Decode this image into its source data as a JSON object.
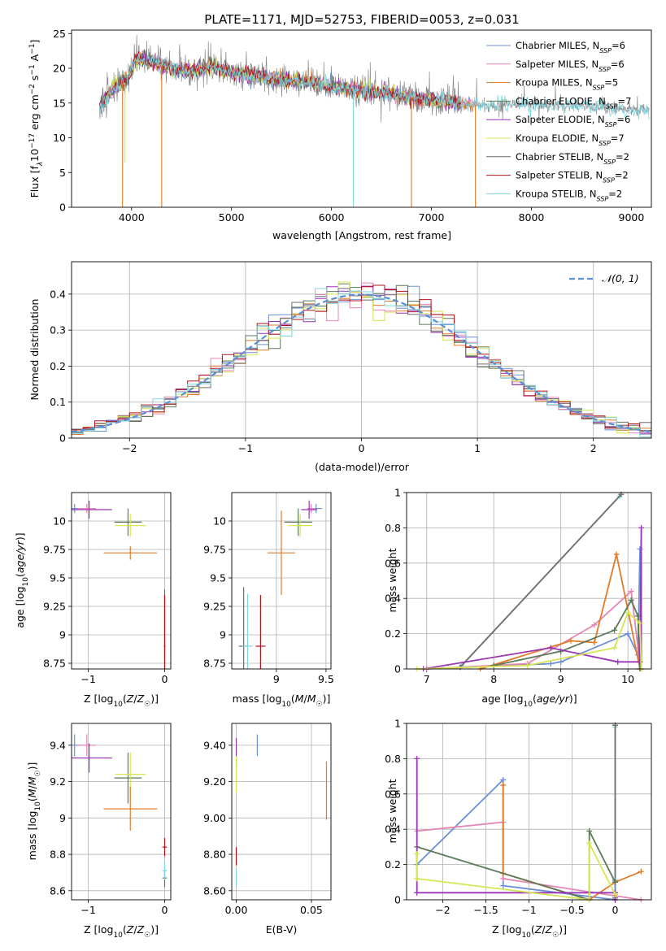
{
  "colors": {
    "chab_miles": "#6a8fd6",
    "salp_miles": "#e585b5",
    "krou_miles": "#e07b2a",
    "chab_elodie": "#5a7a58",
    "salp_elodie": "#9b35b5",
    "krou_elodie": "#d4e652",
    "chab_stelib": "#6e6e6e",
    "salp_stelib": "#b5101a",
    "krou_stelib": "#7fd6e0",
    "gauss": "#5b8fd8",
    "grid": "#b0b0b0"
  },
  "chart_data": [
    {
      "id": "spectrum",
      "type": "line",
      "title": "PLATE=1171, MJD=52753, FIBERID=0053, z=0.031",
      "xlabel": "wavelength [Angstrom, rest frame]",
      "ylabel": "Flux [f_λ10^-17 erg cm^-2 s^-1 A^-1]",
      "xlim": [
        3400,
        9200
      ],
      "ylim": [
        0,
        25.5
      ],
      "xticks": [
        4000,
        5000,
        6000,
        7000,
        8000,
        9000
      ],
      "yticks": [
        0,
        5,
        10,
        15,
        20,
        25
      ],
      "grid": false,
      "legend": "top-right",
      "legend_entries": [
        {
          "base": "Chabrier MILES, N",
          "sub": "SSP",
          "tail": "=6",
          "color": "chab_miles"
        },
        {
          "base": "Salpeter MILES, N",
          "sub": "SSP",
          "tail": "=6",
          "color": "salp_miles"
        },
        {
          "base": "Kroupa MILES, N",
          "sub": "SSP",
          "tail": "=5",
          "color": "krou_miles"
        },
        {
          "base": "Chabrier ELODIE, N",
          "sub": "SSP",
          "tail": "=7",
          "color": "chab_elodie"
        },
        {
          "base": "Salpeter ELODIE, N",
          "sub": "SSP",
          "tail": "=6",
          "color": "salp_elodie"
        },
        {
          "base": "Kroupa ELODIE, N",
          "sub": "SSP",
          "tail": "=7",
          "color": "krou_elodie"
        },
        {
          "base": "Chabrier STELIB, N",
          "sub": "SSP",
          "tail": "=2",
          "color": "chab_stelib"
        },
        {
          "base": "Salpeter STELIB, N",
          "sub": "SSP",
          "tail": "=2",
          "color": "salp_stelib"
        },
        {
          "base": "Kroupa STELIB, N",
          "sub": "SSP",
          "tail": "=2",
          "color": "krou_stelib"
        }
      ],
      "continuum": [
        [
          3680,
          14.2
        ],
        [
          3750,
          16.0
        ],
        [
          3850,
          17.5
        ],
        [
          3950,
          18.0
        ],
        [
          4050,
          21.5
        ],
        [
          4200,
          21.0
        ],
        [
          4400,
          20.0
        ],
        [
          4600,
          19.5
        ],
        [
          4800,
          20.3
        ],
        [
          5000,
          19.5
        ],
        [
          5200,
          19.0
        ],
        [
          5400,
          18.5
        ],
        [
          5600,
          18.2
        ],
        [
          5800,
          17.9
        ],
        [
          6000,
          17.3
        ],
        [
          6200,
          17.0
        ],
        [
          6400,
          16.6
        ],
        [
          6600,
          16.3
        ],
        [
          6800,
          15.8
        ],
        [
          7000,
          15.3
        ],
        [
          7200,
          15.1
        ],
        [
          7400,
          14.8
        ],
        [
          7600,
          14.6
        ],
        [
          7800,
          14.8
        ],
        [
          8000,
          14.8
        ],
        [
          8200,
          14.6
        ],
        [
          8400,
          14.6
        ],
        [
          8600,
          14.5
        ],
        [
          8800,
          14.3
        ],
        [
          9000,
          14.1
        ],
        [
          9180,
          14.0
        ]
      ],
      "model_dips": [
        {
          "x": 3910,
          "y": 0,
          "series": "krou_miles"
        },
        {
          "x": 4302,
          "y": 0,
          "series": "krou_miles"
        },
        {
          "x": 6220,
          "y": 0,
          "series": "krou_stelib"
        },
        {
          "x": 6800,
          "y": 0,
          "series": "krou_miles"
        },
        {
          "x": 7440,
          "y": 0,
          "series": "krou_miles"
        },
        {
          "x": 3935,
          "y": 6.5,
          "series": "krou_elodie"
        }
      ]
    },
    {
      "id": "residuals",
      "type": "histogram",
      "xlabel": "(data-model)/error",
      "ylabel": "Normed distribution",
      "xlim": [
        -2.5,
        2.5
      ],
      "ylim": [
        0,
        0.49
      ],
      "xticks": [
        -2,
        -1,
        0,
        1,
        2
      ],
      "yticks": [
        0.0,
        0.1,
        0.2,
        0.3,
        0.4
      ],
      "grid": true,
      "legend": "top-right",
      "gauss_label": "𝒩(0, 1)",
      "bin_width": 0.1
    },
    {
      "id": "age_vs_Z",
      "type": "errorbar",
      "xlabel": "Z [log10(Z/Z☉)]",
      "ylabel": "age [log10(age/yr)]",
      "xlim": [
        -1.22,
        0.08
      ],
      "ylim": [
        8.7,
        10.25
      ],
      "xticks": [
        -1,
        0
      ],
      "yticks": [
        8.75,
        9.0,
        9.25,
        9.5,
        9.75,
        10.0
      ],
      "points": [
        {
          "s": "chab_miles",
          "x": -1.18,
          "y": 10.11,
          "xe": 0.08,
          "ye": 0.04
        },
        {
          "s": "salp_miles",
          "x": -1.02,
          "y": 10.11,
          "xe": 0.12,
          "ye": 0.04
        },
        {
          "s": "salp_elodie",
          "x": -0.99,
          "y": 10.1,
          "xe": 0.3,
          "ye": 0.08
        },
        {
          "s": "chab_elodie",
          "x": -0.48,
          "y": 9.99,
          "xe": 0.18,
          "ye": 0.12
        },
        {
          "s": "krou_elodie",
          "x": -0.45,
          "y": 9.96,
          "xe": 0.2,
          "ye": 0.1
        },
        {
          "s": "krou_miles",
          "x": -0.45,
          "y": 9.72,
          "xe": 0.35,
          "ye": 0.06
        },
        {
          "s": "chab_stelib",
          "x": 0.0,
          "y": 8.9,
          "xe": 0.01,
          "ye": 0.5
        },
        {
          "s": "krou_stelib",
          "x": 0.0,
          "y": 8.9,
          "xe": 0.01,
          "ye": 0.45
        },
        {
          "s": "salp_stelib",
          "x": 0.0,
          "y": 8.9,
          "xe": 0.01,
          "ye": 0.45
        }
      ]
    },
    {
      "id": "age_vs_mass",
      "type": "errorbar",
      "xlabel": "mass [log10(M/M☉)]",
      "ylabel": "",
      "xlim": [
        8.55,
        9.55
      ],
      "ylim": [
        8.7,
        10.25
      ],
      "xticks": [
        9.0,
        9.5
      ],
      "yticks": [
        8.75,
        9.0,
        9.25,
        9.5,
        9.75,
        10.0
      ],
      "points": [
        {
          "s": "chab_miles",
          "x": 9.4,
          "y": 10.11,
          "xe": 0.06,
          "ye": 0.04
        },
        {
          "s": "salp_miles",
          "x": 9.35,
          "y": 10.11,
          "xe": 0.04,
          "ye": 0.04
        },
        {
          "s": "salp_elodie",
          "x": 9.33,
          "y": 10.1,
          "xe": 0.08,
          "ye": 0.08
        },
        {
          "s": "chab_elodie",
          "x": 9.22,
          "y": 9.99,
          "xe": 0.14,
          "ye": 0.12
        },
        {
          "s": "krou_elodie",
          "x": 9.24,
          "y": 9.96,
          "xe": 0.12,
          "ye": 0.1
        },
        {
          "s": "krou_miles",
          "x": 9.05,
          "y": 9.72,
          "xe": 0.14,
          "ye": 0.37
        },
        {
          "s": "chab_stelib",
          "x": 8.67,
          "y": 8.9,
          "xe": 0.05,
          "ye": 0.52
        },
        {
          "s": "krou_stelib",
          "x": 8.71,
          "y": 8.9,
          "xe": 0.05,
          "ye": 0.46
        },
        {
          "s": "salp_stelib",
          "x": 8.84,
          "y": 8.9,
          "xe": 0.05,
          "ye": 0.45
        }
      ]
    },
    {
      "id": "mass_vs_Z",
      "type": "errorbar",
      "xlabel": "Z [log10(Z/Z☉)]",
      "ylabel": "mass [log10(M/M☉)]",
      "xlim": [
        -1.22,
        0.08
      ],
      "ylim": [
        8.55,
        9.52
      ],
      "xticks": [
        -1,
        0
      ],
      "yticks": [
        8.6,
        8.8,
        9.0,
        9.2,
        9.4
      ],
      "points": [
        {
          "s": "chab_miles",
          "x": -1.18,
          "y": 9.4,
          "xe": 0.08,
          "ye": 0.06
        },
        {
          "s": "salp_miles",
          "x": -1.02,
          "y": 9.4,
          "xe": 0.12,
          "ye": 0.06
        },
        {
          "s": "salp_elodie",
          "x": -0.99,
          "y": 9.33,
          "xe": 0.3,
          "ye": 0.08
        },
        {
          "s": "chab_elodie",
          "x": -0.48,
          "y": 9.22,
          "xe": 0.18,
          "ye": 0.14
        },
        {
          "s": "krou_elodie",
          "x": -0.45,
          "y": 9.24,
          "xe": 0.2,
          "ye": 0.12
        },
        {
          "s": "krou_miles",
          "x": -0.45,
          "y": 9.05,
          "xe": 0.35,
          "ye": 0.12
        },
        {
          "s": "chab_stelib",
          "x": 0.0,
          "y": 8.67,
          "xe": 0.03,
          "ye": 0.05
        },
        {
          "s": "krou_stelib",
          "x": 0.0,
          "y": 8.71,
          "xe": 0.03,
          "ye": 0.05
        },
        {
          "s": "salp_stelib",
          "x": 0.0,
          "y": 8.84,
          "xe": 0.03,
          "ye": 0.05
        }
      ]
    },
    {
      "id": "mass_vs_ebv",
      "type": "errorbar",
      "xlabel": "E(B-V)",
      "ylabel": "",
      "xlim": [
        -0.003,
        0.063
      ],
      "ylim": [
        8.55,
        9.52
      ],
      "xticks": [
        0.0,
        0.05
      ],
      "yticks": [
        8.6,
        8.8,
        9.0,
        9.2,
        9.4
      ],
      "points": [
        {
          "s": "chab_miles",
          "x": 0.014,
          "y": 9.4,
          "xe": 0,
          "ye": 0.06
        },
        {
          "s": "salp_elodie",
          "x": 0.0,
          "y": 9.36,
          "xe": 0,
          "ye": 0.08
        },
        {
          "s": "krou_elodie",
          "x": 0.0,
          "y": 9.24,
          "xe": 0,
          "ye": 0.1
        },
        {
          "s": "krou_miles",
          "x": 0.06,
          "y": 9.15,
          "xe": 0,
          "ye": 0.16
        },
        {
          "s": "salp_stelib",
          "x": 0.0,
          "y": 8.79,
          "xe": 0,
          "ye": 0.05
        },
        {
          "s": "krou_stelib",
          "x": 0.0,
          "y": 8.67,
          "xe": 0,
          "ye": 0.05
        }
      ]
    },
    {
      "id": "weight_vs_age",
      "type": "line",
      "xlabel": "age [log10(age/yr)]",
      "ylabel": "mass weight",
      "xlim": [
        6.7,
        10.35
      ],
      "ylim": [
        0,
        1.0
      ],
      "xticks": [
        7,
        8,
        9,
        10
      ],
      "yticks": [
        0.0,
        0.2,
        0.4,
        0.6,
        0.8,
        1.0
      ],
      "grid": true,
      "series": [
        {
          "s": "krou_stelib",
          "x": [
            7.52,
            9.88
          ],
          "y": [
            0.02,
            0.98
          ]
        },
        {
          "s": "chab_stelib",
          "x": [
            7.5,
            9.9
          ],
          "y": [
            0.01,
            0.99
          ]
        },
        {
          "s": "chab_miles",
          "x": [
            7.0,
            8.85,
            9.0,
            10.0,
            10.15,
            10.18
          ],
          "y": [
            0.0,
            0.03,
            0.04,
            0.2,
            0.08,
            0.68
          ]
        },
        {
          "s": "salp_miles",
          "x": [
            7.0,
            8.5,
            9.5,
            10.05,
            10.15,
            10.18
          ],
          "y": [
            0.0,
            0.03,
            0.25,
            0.44,
            0.12,
            0.0
          ]
        },
        {
          "s": "krou_miles",
          "x": [
            7.8,
            9.15,
            9.5,
            9.83,
            10.18
          ],
          "y": [
            0.0,
            0.16,
            0.15,
            0.65,
            0.0
          ]
        },
        {
          "s": "chab_elodie",
          "x": [
            8.0,
            9.0,
            9.8,
            10.05,
            10.15,
            10.18
          ],
          "y": [
            0.02,
            0.1,
            0.22,
            0.39,
            0.3,
            0.0
          ]
        },
        {
          "s": "salp_elodie",
          "x": [
            6.95,
            8.85,
            9.85,
            10.18,
            10.2,
            10.2
          ],
          "y": [
            0.0,
            0.12,
            0.04,
            0.04,
            0.8,
            0.0
          ]
        },
        {
          "s": "krou_elodie",
          "x": [
            6.85,
            8.5,
            9.8,
            10.0,
            10.18,
            10.2
          ],
          "y": [
            0.0,
            0.02,
            0.12,
            0.32,
            0.26,
            0.0
          ]
        }
      ]
    },
    {
      "id": "weight_vs_Z",
      "type": "line",
      "xlabel": "Z [log10(Z/Z☉)]",
      "ylabel": "mass weight",
      "xlim": [
        -2.42,
        0.42
      ],
      "ylim": [
        0,
        1.0
      ],
      "xticks": [
        -2.0,
        -1.5,
        -1.0,
        -0.5,
        0.0
      ],
      "yticks": [
        0.0,
        0.2,
        0.4,
        0.6,
        0.8,
        1.0
      ],
      "grid": true,
      "series": [
        {
          "s": "krou_stelib",
          "x": [
            0.0,
            0.0
          ],
          "y": [
            0.02,
            0.98
          ]
        },
        {
          "s": "chab_stelib",
          "x": [
            0.0,
            0.0
          ],
          "y": [
            0.01,
            0.99
          ]
        },
        {
          "s": "chab_miles",
          "x": [
            -2.3,
            -1.3,
            -1.3,
            0.0,
            0.0
          ],
          "y": [
            0.2,
            0.68,
            0.08,
            0.0,
            0.11
          ]
        },
        {
          "s": "salp_miles",
          "x": [
            -2.3,
            -1.3,
            -1.3,
            0.3
          ],
          "y": [
            0.39,
            0.44,
            0.12,
            0.0
          ]
        },
        {
          "s": "krou_miles",
          "x": [
            -1.3,
            -1.3,
            -0.3,
            0.0,
            0.3
          ],
          "y": [
            0.65,
            0.15,
            0.0,
            0.1,
            0.16
          ]
        },
        {
          "s": "chab_elodie",
          "x": [
            -2.3,
            -0.3,
            -0.3,
            0.0
          ],
          "y": [
            0.3,
            0.0,
            0.39,
            0.1
          ]
        },
        {
          "s": "salp_elodie",
          "x": [
            -2.3,
            -2.3,
            -0.3,
            0.0,
            0.0
          ],
          "y": [
            0.8,
            0.04,
            0.04,
            0.04,
            0.0
          ]
        },
        {
          "s": "krou_elodie",
          "x": [
            -2.3,
            -2.3,
            -0.3,
            -0.3,
            0.0
          ],
          "y": [
            0.26,
            0.12,
            0.0,
            0.32,
            0.03
          ]
        }
      ]
    }
  ]
}
